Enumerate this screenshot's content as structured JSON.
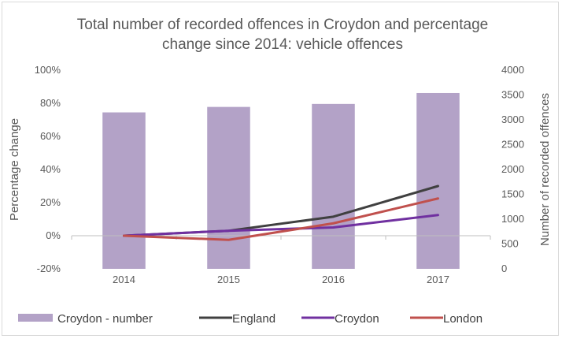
{
  "chart_data": {
    "type": "bar+line",
    "title_lines": [
      "Total number of recorded offences in Croydon and percentage",
      "change since 2014: vehicle offences"
    ],
    "categories": [
      "2014",
      "2015",
      "2016",
      "2017"
    ],
    "ylabel_left": "Percentage change",
    "ylabel_right": "Number of recorded offences",
    "ylim_left": [
      -0.2,
      1.0
    ],
    "ylim_right": [
      0,
      4000
    ],
    "y_left_ticks": [
      {
        "value": -0.2,
        "label": "-20%"
      },
      {
        "value": 0.0,
        "label": "0%"
      },
      {
        "value": 0.2,
        "label": "20%"
      },
      {
        "value": 0.4,
        "label": "40%"
      },
      {
        "value": 0.6,
        "label": "60%"
      },
      {
        "value": 0.8,
        "label": "80%"
      },
      {
        "value": 1.0,
        "label": "100%"
      }
    ],
    "y_right_ticks": [
      {
        "value": 0,
        "label": "0"
      },
      {
        "value": 500,
        "label": "500"
      },
      {
        "value": 1000,
        "label": "1000"
      },
      {
        "value": 1500,
        "label": "1500"
      },
      {
        "value": 2000,
        "label": "2000"
      },
      {
        "value": 2500,
        "label": "2500"
      },
      {
        "value": 3000,
        "label": "3000"
      },
      {
        "value": 3500,
        "label": "3500"
      },
      {
        "value": 4000,
        "label": "4000"
      }
    ],
    "bars": {
      "name": "Croydon - number",
      "axis": "right",
      "color": "#b3a2c7",
      "values": [
        3150,
        3260,
        3320,
        3540
      ]
    },
    "series": [
      {
        "name": "England",
        "axis": "left",
        "color": "#404040",
        "values": [
          0.0,
          0.03,
          0.115,
          0.3
        ]
      },
      {
        "name": "Croydon",
        "axis": "left",
        "color": "#7030a0",
        "values": [
          0.0,
          0.03,
          0.05,
          0.125
        ]
      },
      {
        "name": "London",
        "axis": "left",
        "color": "#c0504d",
        "values": [
          0.0,
          -0.025,
          0.075,
          0.225
        ]
      }
    ],
    "legend_position": "bottom",
    "grid": false
  }
}
